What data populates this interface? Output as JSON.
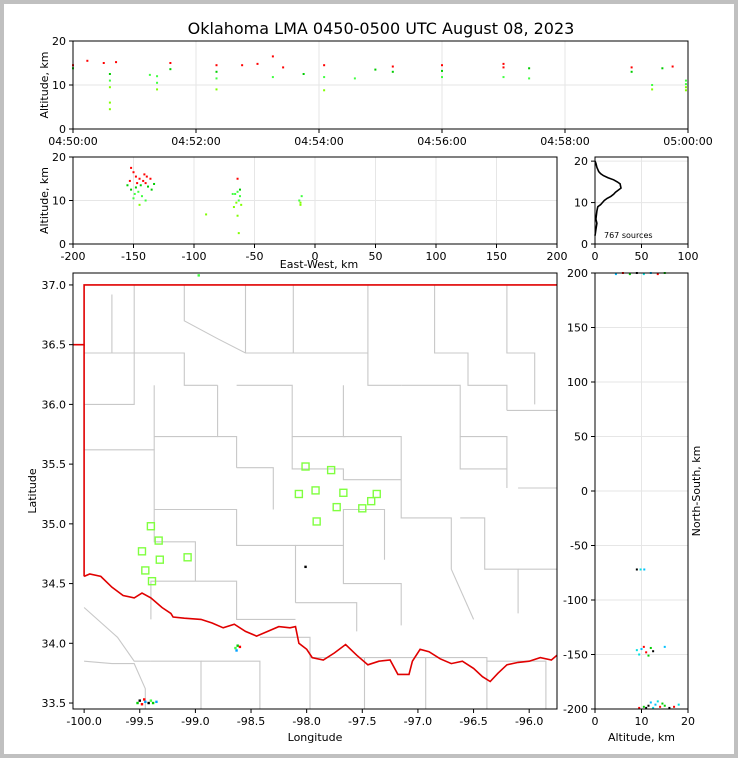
{
  "title": "Oklahoma LMA 0450-0500 UTC August 08, 2023",
  "colors": {
    "frame": "#000000",
    "grid": "#e6e6e6",
    "county": "#c8c8c8",
    "state": "#e00000",
    "station": "#80ff40"
  },
  "source_count_label": "767 sources",
  "chart_data": [
    {
      "id": "time-height",
      "type": "scatter",
      "xlabel": "",
      "ylabel": "Altitude, km",
      "xlim": [
        "04:50:00",
        "05:00:00"
      ],
      "ylim": [
        0,
        20
      ],
      "xticks": [
        "04:50:00",
        "04:52:00",
        "04:54:00",
        "04:56:00",
        "04:58:00",
        "05:00:00"
      ],
      "yticks": [
        0,
        10,
        20
      ],
      "grid": true,
      "points": [
        {
          "t": "04:50:00",
          "alt": 14.5
        },
        {
          "t": "04:50:00",
          "alt": 13.8
        },
        {
          "t": "04:50:14",
          "alt": 15.5
        },
        {
          "t": "04:50:30",
          "alt": 15.0
        },
        {
          "t": "04:50:36",
          "alt": 12.5
        },
        {
          "t": "04:50:36",
          "alt": 11.0
        },
        {
          "t": "04:50:36",
          "alt": 9.5
        },
        {
          "t": "04:50:36",
          "alt": 6.0
        },
        {
          "t": "04:50:36",
          "alt": 4.5
        },
        {
          "t": "04:50:42",
          "alt": 15.2
        },
        {
          "t": "04:51:15",
          "alt": 12.3
        },
        {
          "t": "04:51:22",
          "alt": 12.0
        },
        {
          "t": "04:51:22",
          "alt": 10.5
        },
        {
          "t": "04:51:22",
          "alt": 9.0
        },
        {
          "t": "04:51:35",
          "alt": 15.0
        },
        {
          "t": "04:51:35",
          "alt": 13.6
        },
        {
          "t": "04:52:20",
          "alt": 14.5
        },
        {
          "t": "04:52:20",
          "alt": 13.0
        },
        {
          "t": "04:52:20",
          "alt": 11.5
        },
        {
          "t": "04:52:20",
          "alt": 9.0
        },
        {
          "t": "04:52:45",
          "alt": 14.5
        },
        {
          "t": "04:53:00",
          "alt": 14.8
        },
        {
          "t": "04:53:15",
          "alt": 16.5
        },
        {
          "t": "04:53:15",
          "alt": 11.8
        },
        {
          "t": "04:53:25",
          "alt": 14.0
        },
        {
          "t": "04:53:45",
          "alt": 12.5
        },
        {
          "t": "04:54:05",
          "alt": 14.5
        },
        {
          "t": "04:54:05",
          "alt": 11.8
        },
        {
          "t": "04:54:05",
          "alt": 8.8
        },
        {
          "t": "04:54:35",
          "alt": 11.5
        },
        {
          "t": "04:54:55",
          "alt": 13.5
        },
        {
          "t": "04:55:12",
          "alt": 14.2
        },
        {
          "t": "04:55:12",
          "alt": 13.0
        },
        {
          "t": "04:56:00",
          "alt": 14.5
        },
        {
          "t": "04:56:00",
          "alt": 13.2
        },
        {
          "t": "04:56:00",
          "alt": 11.8
        },
        {
          "t": "04:57:00",
          "alt": 14.8
        },
        {
          "t": "04:57:00",
          "alt": 14.0
        },
        {
          "t": "04:57:00",
          "alt": 11.8
        },
        {
          "t": "04:57:25",
          "alt": 13.8
        },
        {
          "t": "04:57:25",
          "alt": 11.5
        },
        {
          "t": "04:59:05",
          "alt": 14.0
        },
        {
          "t": "04:59:05",
          "alt": 13.0
        },
        {
          "t": "04:59:25",
          "alt": 10.0
        },
        {
          "t": "04:59:25",
          "alt": 9.0
        },
        {
          "t": "04:59:35",
          "alt": 13.8
        },
        {
          "t": "04:59:45",
          "alt": 14.2
        },
        {
          "t": "04:59:58",
          "alt": 11.0
        },
        {
          "t": "04:59:58",
          "alt": 10.2
        },
        {
          "t": "04:59:58",
          "alt": 9.5
        },
        {
          "t": "04:59:58",
          "alt": 8.8
        }
      ]
    },
    {
      "id": "ew-height",
      "type": "scatter",
      "xlabel": "East-West, km",
      "ylabel": "Altitude, km",
      "xlim": [
        -200,
        200
      ],
      "ylim": [
        0,
        20
      ],
      "xticks": [
        -200,
        -150,
        -100,
        -50,
        0,
        50,
        100,
        150,
        200
      ],
      "yticks": [
        0,
        10,
        20
      ],
      "grid": true,
      "points": [
        {
          "x": -152,
          "alt": 17.5
        },
        {
          "x": -150,
          "alt": 16.5
        },
        {
          "x": -148,
          "alt": 15.5
        },
        {
          "x": -145,
          "alt": 15.0
        },
        {
          "x": -142,
          "alt": 14.5
        },
        {
          "x": -140,
          "alt": 14.0
        },
        {
          "x": -138,
          "alt": 13.2
        },
        {
          "x": -148,
          "alt": 13.0
        },
        {
          "x": -152,
          "alt": 12.5
        },
        {
          "x": -146,
          "alt": 12.0
        },
        {
          "x": -143,
          "alt": 11.0
        },
        {
          "x": -150,
          "alt": 10.5
        },
        {
          "x": -140,
          "alt": 10.0
        },
        {
          "x": -145,
          "alt": 9.0
        },
        {
          "x": -135,
          "alt": 12.5
        },
        {
          "x": -153,
          "alt": 14.5
        },
        {
          "x": -147,
          "alt": 14.0
        },
        {
          "x": -144,
          "alt": 13.5
        },
        {
          "x": -141,
          "alt": 16.0
        },
        {
          "x": -139,
          "alt": 15.5
        },
        {
          "x": -136,
          "alt": 15.0
        },
        {
          "x": -149,
          "alt": 11.5
        },
        {
          "x": -155,
          "alt": 13.5
        },
        {
          "x": -133,
          "alt": 13.8
        },
        {
          "x": -90,
          "alt": 6.8
        },
        {
          "x": -66,
          "alt": 11.5
        },
        {
          "x": -64,
          "alt": 12.0
        },
        {
          "x": -62,
          "alt": 11.0
        },
        {
          "x": -63,
          "alt": 10.0
        },
        {
          "x": -65,
          "alt": 9.5
        },
        {
          "x": -67,
          "alt": 8.5
        },
        {
          "x": -62,
          "alt": 12.5
        },
        {
          "x": -64,
          "alt": 15.0
        },
        {
          "x": -64,
          "alt": 6.5
        },
        {
          "x": -63,
          "alt": 2.5
        },
        {
          "x": -61,
          "alt": 9.0
        },
        {
          "x": -68,
          "alt": 11.5
        },
        {
          "x": -13,
          "alt": 10.0
        },
        {
          "x": -12,
          "alt": 9.5
        },
        {
          "x": -12,
          "alt": 9.0
        },
        {
          "x": -11,
          "alt": 11.0
        }
      ]
    },
    {
      "id": "altitude-histogram",
      "type": "line",
      "xlabel": "",
      "ylabel": "",
      "xlim": [
        0,
        100
      ],
      "ylim": [
        0,
        21
      ],
      "xticks": [
        0,
        50,
        100
      ],
      "yticks": [
        0,
        10,
        20
      ],
      "grid": true,
      "x": [
        0,
        1,
        2,
        4,
        6,
        9,
        14,
        20,
        24,
        27,
        28,
        25,
        22,
        20,
        17,
        13,
        10,
        8,
        6,
        3,
        2,
        1,
        2,
        1,
        0
      ],
      "y": [
        20.0,
        19.5,
        18.5,
        17.5,
        17.0,
        16.5,
        16.0,
        15.5,
        15.0,
        14.5,
        13.5,
        13.0,
        12.5,
        12.0,
        11.5,
        11.0,
        10.5,
        10.0,
        9.5,
        9.0,
        8.0,
        6.0,
        5.0,
        3.5,
        2.0
      ]
    },
    {
      "id": "plan-view",
      "type": "scatter",
      "xlabel": "Longitude",
      "ylabel": "Latitude",
      "xlim": [
        -100.1,
        -95.75
      ],
      "ylim": [
        33.45,
        37.1
      ],
      "xticks": [
        -100.0,
        -99.5,
        -99.0,
        -98.5,
        -98.0,
        -97.5,
        -97.0,
        -96.5,
        -96.0
      ],
      "yticks": [
        33.5,
        34.0,
        34.5,
        35.0,
        35.5,
        36.0,
        36.5,
        37.0
      ],
      "stations": [
        {
          "lon": -98.01,
          "lat": 35.48
        },
        {
          "lon": -97.78,
          "lat": 35.45
        },
        {
          "lon": -98.07,
          "lat": 35.25
        },
        {
          "lon": -97.92,
          "lat": 35.28
        },
        {
          "lon": -97.67,
          "lat": 35.26
        },
        {
          "lon": -97.37,
          "lat": 35.25
        },
        {
          "lon": -97.42,
          "lat": 35.19
        },
        {
          "lon": -97.73,
          "lat": 35.14
        },
        {
          "lon": -97.5,
          "lat": 35.13
        },
        {
          "lon": -97.91,
          "lat": 35.02
        },
        {
          "lon": -99.4,
          "lat": 34.98
        },
        {
          "lon": -99.33,
          "lat": 34.86
        },
        {
          "lon": -99.48,
          "lat": 34.77
        },
        {
          "lon": -99.07,
          "lat": 34.72
        },
        {
          "lon": -99.32,
          "lat": 34.7
        },
        {
          "lon": -99.45,
          "lat": 34.61
        },
        {
          "lon": -99.39,
          "lat": 34.52
        }
      ],
      "sources": [
        {
          "lon": -99.52,
          "lat": 33.5
        },
        {
          "lon": -99.48,
          "lat": 33.49
        },
        {
          "lon": -99.45,
          "lat": 33.51
        },
        {
          "lon": -99.42,
          "lat": 33.5
        },
        {
          "lon": -99.4,
          "lat": 33.52
        },
        {
          "lon": -99.38,
          "lat": 33.5
        },
        {
          "lon": -99.46,
          "lat": 33.53
        },
        {
          "lon": -99.35,
          "lat": 33.51
        },
        {
          "lon": -99.5,
          "lat": 33.52
        },
        {
          "lon": -98.64,
          "lat": 33.96
        },
        {
          "lon": -98.62,
          "lat": 33.98
        },
        {
          "lon": -98.6,
          "lat": 33.97
        },
        {
          "lon": -98.63,
          "lat": 33.94
        },
        {
          "lon": -98.01,
          "lat": 34.64
        },
        {
          "lon": -98.97,
          "lat": 37.08
        }
      ]
    },
    {
      "id": "ns-height",
      "type": "scatter",
      "xlabel": "Altitude, km",
      "ylabel": "North-South, km",
      "xlim": [
        0,
        20
      ],
      "ylim": [
        -200,
        200
      ],
      "xticks": [
        0,
        10,
        20
      ],
      "yticks": [
        -200,
        -150,
        -100,
        -50,
        0,
        50,
        100,
        150,
        200
      ],
      "grid": true,
      "points": [
        {
          "alt": 9.0,
          "y": -146
        },
        {
          "alt": 10.0,
          "y": -145
        },
        {
          "alt": 11.0,
          "y": -148
        },
        {
          "alt": 12.0,
          "y": -144
        },
        {
          "alt": 12.5,
          "y": -147
        },
        {
          "alt": 9.5,
          "y": -150
        },
        {
          "alt": 15.0,
          "y": -143
        },
        {
          "alt": 10.5,
          "y": -143
        },
        {
          "alt": 11.5,
          "y": -151
        },
        {
          "alt": 9.0,
          "y": -72
        },
        {
          "alt": 9.8,
          "y": -72
        },
        {
          "alt": 10.6,
          "y": -72
        },
        {
          "alt": 9.5,
          "y": -199
        },
        {
          "alt": 10.5,
          "y": -198
        },
        {
          "alt": 11.5,
          "y": -197
        },
        {
          "alt": 12.5,
          "y": -199
        },
        {
          "alt": 13.0,
          "y": -196
        },
        {
          "alt": 14.0,
          "y": -198
        },
        {
          "alt": 15.0,
          "y": -197
        },
        {
          "alt": 16.0,
          "y": -199
        },
        {
          "alt": 13.5,
          "y": -193
        },
        {
          "alt": 12.0,
          "y": -194
        },
        {
          "alt": 17.0,
          "y": -198
        },
        {
          "alt": 14.5,
          "y": -195
        },
        {
          "alt": 11.0,
          "y": -199
        },
        {
          "alt": 18.0,
          "y": -196
        },
        {
          "alt": 4.5,
          "y": 199
        },
        {
          "alt": 6.0,
          "y": 200
        },
        {
          "alt": 7.5,
          "y": 199
        },
        {
          "alt": 9.0,
          "y": 200
        },
        {
          "alt": 10.5,
          "y": 199
        },
        {
          "alt": 12.0,
          "y": 200
        },
        {
          "alt": 13.5,
          "y": 199
        },
        {
          "alt": 15.0,
          "y": 200
        }
      ]
    }
  ]
}
